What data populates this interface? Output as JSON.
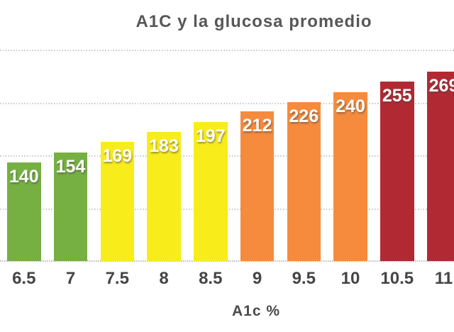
{
  "chart_data": {
    "type": "bar",
    "title": "A1C y la glucosa promedio",
    "xlabel": "A1c %",
    "ylabel": "",
    "categories": [
      "6.5",
      "7",
      "7.5",
      "8",
      "8.5",
      "9",
      "9.5",
      "10",
      "10.5",
      "11"
    ],
    "values": [
      140,
      154,
      169,
      183,
      197,
      212,
      226,
      240,
      255,
      269
    ],
    "bar_colors": [
      "#76B043",
      "#76B043",
      "#F8EC1B",
      "#F8EC1B",
      "#F8EC1B",
      "#F68B3D",
      "#F68B3D",
      "#F68B3D",
      "#B12A33",
      "#B12A33"
    ],
    "value_label_color": "#FFFFFF",
    "ylim": [
      0,
      300
    ],
    "ygrid_step": 75,
    "grid": "horizontal dotted",
    "legend": "none",
    "notes": "value labels shown in white inside top of each bar; rightmost bar (11) is clipped by the image edge"
  },
  "colors": {
    "background": "#FFFFFF",
    "title_text": "#575757",
    "tick_text": "#454545",
    "gridline": "#C6C6C6"
  }
}
